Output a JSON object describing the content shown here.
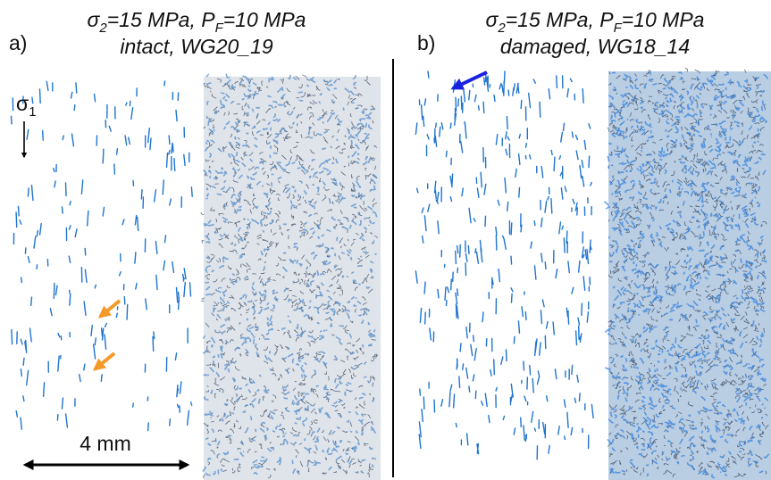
{
  "panels": [
    {
      "label": "a)",
      "title": {
        "symbol": "σ",
        "symbol_sub": "2",
        "middle": "=15 MPa, P",
        "p_sub": "F",
        "end": "=10 MPa"
      },
      "subtitle": "intact, WG20_19"
    },
    {
      "label": "b)",
      "title": {
        "symbol": "σ",
        "symbol_sub": "2",
        "middle": "=15 MPa, P",
        "p_sub": "F",
        "end": "=10 MPa"
      },
      "subtitle": "damaged, WG18_14"
    }
  ],
  "stress_label": {
    "symbol": "σ",
    "sub": "1"
  },
  "scale_bar": "4 mm"
}
